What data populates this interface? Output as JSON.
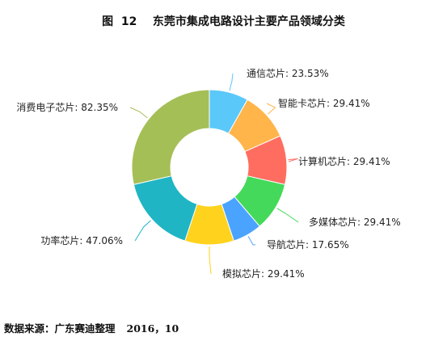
{
  "chart_data": {
    "type": "pie",
    "variant": "donut",
    "title": "图  12    东莞市集成电路设计主要产品领域分类",
    "categories": [
      "通信芯片",
      "智能卡芯片",
      "计算机芯片",
      "多媒体芯片",
      "导航芯片",
      "模拟芯片",
      "功率芯片",
      "消费电子芯片"
    ],
    "values": [
      23.53,
      29.41,
      29.41,
      29.41,
      17.65,
      29.41,
      47.06,
      82.35
    ],
    "labels": [
      "通信芯片: 23.53%",
      "智能卡芯片: 29.41%",
      "计算机芯片: 29.41%",
      "多媒体芯片: 29.41%",
      "导航芯片: 17.65%",
      "模拟芯片: 29.41%",
      "功率芯片: 47.06%",
      "消费电子芯片: 82.35%"
    ],
    "colors": [
      "#5bc8fa",
      "#ffb54a",
      "#ff6d60",
      "#44d95a",
      "#4aa3ff",
      "#ffd21e",
      "#1fb5c5",
      "#a5bf57"
    ],
    "legend": "none"
  },
  "source": {
    "label": "数据来源：广东赛迪整理",
    "date": "2016，10"
  }
}
